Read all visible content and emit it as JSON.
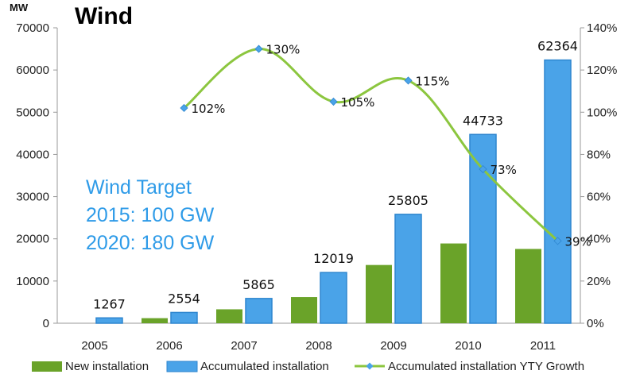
{
  "chart_data": {
    "type": "bar",
    "title": "Wind",
    "y_unit_label": "MW",
    "categories": [
      "2005",
      "2006",
      "2007",
      "2008",
      "2009",
      "2010",
      "2011"
    ],
    "ylim": [
      0,
      70000
    ],
    "yticks": [
      0,
      10000,
      20000,
      30000,
      40000,
      50000,
      60000,
      70000
    ],
    "y2lim": [
      0,
      140
    ],
    "y2ticks": [
      "0%",
      "20%",
      "40%",
      "60%",
      "80%",
      "100%",
      "120%",
      "140%"
    ],
    "series": [
      {
        "name": "New installation",
        "kind": "bar",
        "color": "#6aa329",
        "values": [
          null,
          1200,
          3300,
          6200,
          13800,
          18900,
          17600
        ]
      },
      {
        "name": "Accumulated installation",
        "kind": "bar",
        "color": "#4aa3e8",
        "values": [
          1267,
          2554,
          5865,
          12019,
          25805,
          44733,
          62364
        ],
        "labels": [
          "1267",
          "2554",
          "5865",
          "12019",
          "25805",
          "44733",
          "62364"
        ]
      },
      {
        "name": "Accumulated installation YTY Growth",
        "kind": "line",
        "axis": "right",
        "color": "#8cc63f",
        "marker_color": "#4aa3e8",
        "values": [
          null,
          102,
          130,
          105,
          115,
          73,
          39
        ],
        "labels": [
          null,
          "102%",
          "130%",
          "105%",
          "115%",
          "73%",
          "39%"
        ]
      }
    ],
    "annotation": [
      "Wind Target",
      "2015: 100 GW",
      "2020: 180 GW"
    ],
    "annotation_color": "#2e9be8",
    "legend_position": "bottom",
    "grid": false
  }
}
